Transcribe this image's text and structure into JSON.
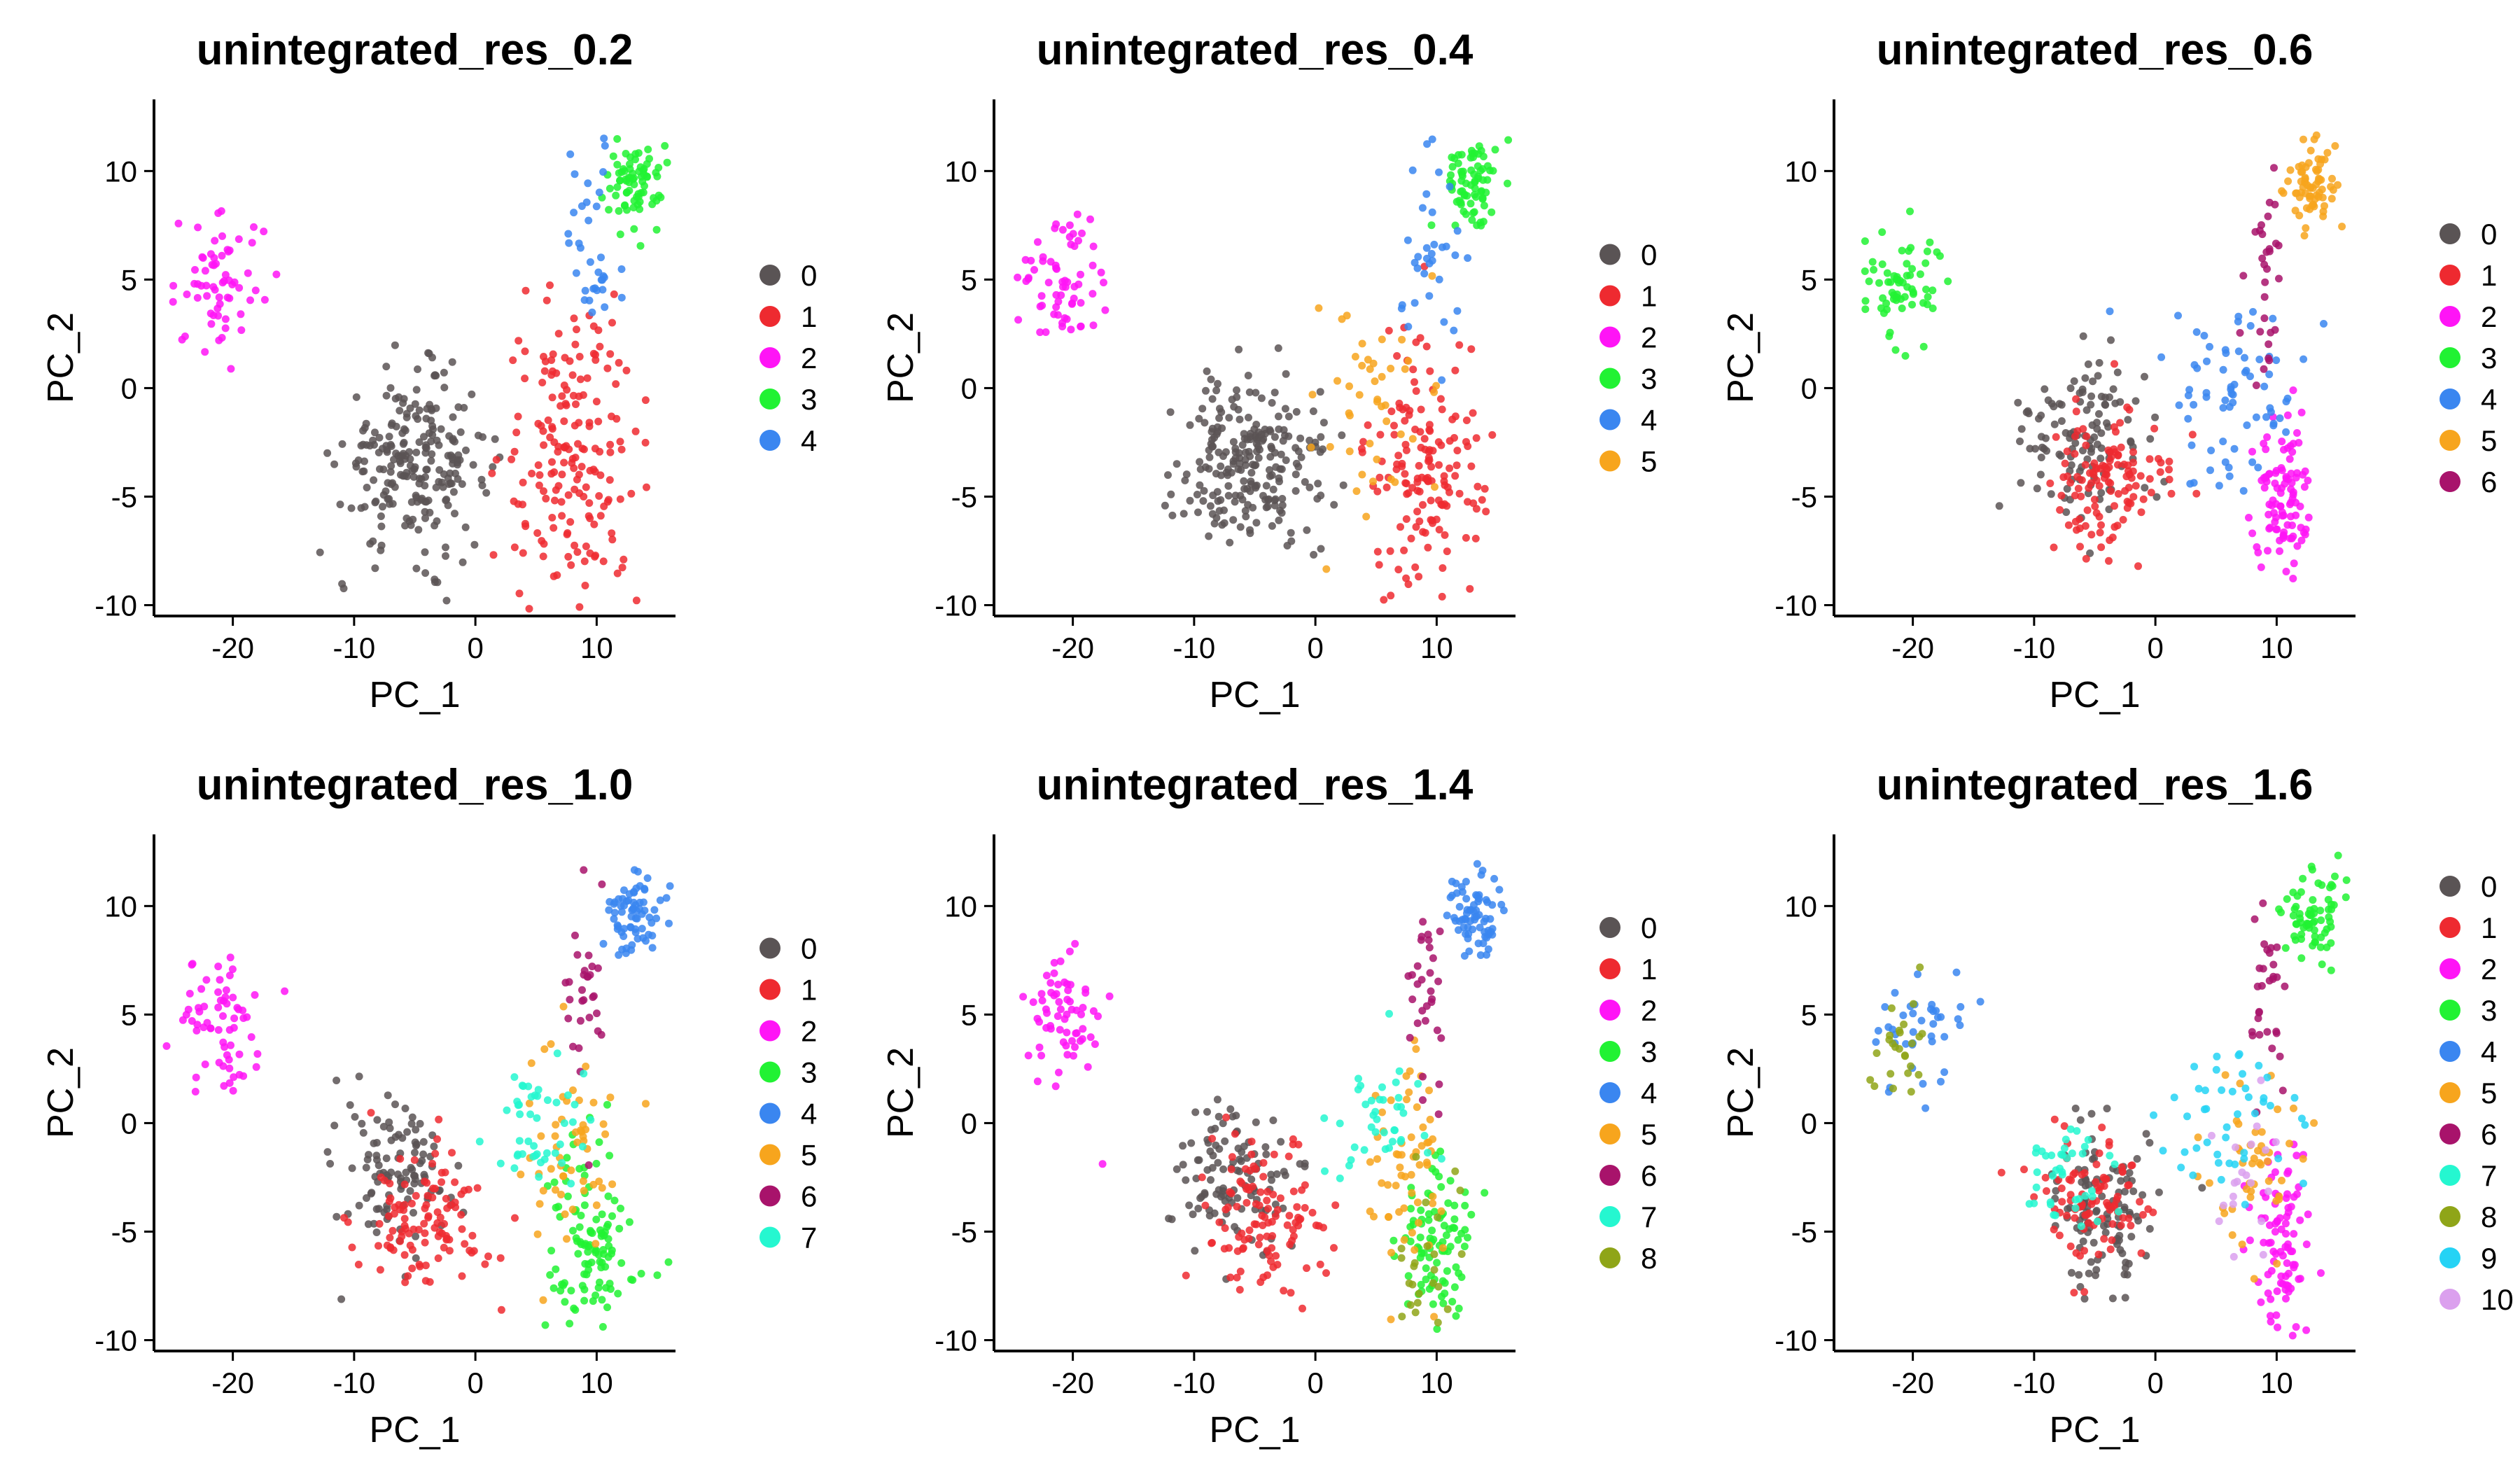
{
  "palette": {
    "0": "#5a5455",
    "1": "#ee2a30",
    "2": "#ff14f6",
    "3": "#21f233",
    "4": "#3a86f0",
    "5": "#f7a51d",
    "6": "#a8136b",
    "7": "#25f7d0",
    "8": "#8fa518",
    "9": "#25d3f5",
    "10": "#dba0ee"
  },
  "chart_data": [
    {
      "type": "scatter",
      "title": "unintegrated_res_0.2",
      "xlabel": "PC_1",
      "ylabel": "PC_2",
      "xlim": [
        -26.5,
        16.5
      ],
      "ylim": [
        -10.5,
        13.3
      ],
      "xticks": [
        -20,
        -10,
        0,
        10
      ],
      "yticks": [
        -10,
        -5,
        0,
        5,
        10
      ],
      "grid": false,
      "legend": "right",
      "legend_labels": [
        "0",
        "1",
        "2",
        "3",
        "4"
      ],
      "clusters": [
        {
          "label": "0",
          "points": 230,
          "center": [
            -5,
            -3.5
          ],
          "spread": [
            3,
            2
          ]
        },
        {
          "label": "1",
          "points": 180,
          "center": [
            8,
            -3
          ],
          "spread": [
            2.8,
            3.5
          ]
        },
        {
          "label": "2",
          "points": 65,
          "center": [
            -21,
            4.8
          ],
          "spread": [
            1.8,
            1.5
          ]
        },
        {
          "label": "3",
          "points": 75,
          "center": [
            13,
            9.5
          ],
          "spread": [
            1.2,
            1
          ]
        },
        {
          "label": "4",
          "points": 35,
          "center": [
            9.5,
            6.5
          ],
          "spread": [
            1.2,
            2.5
          ]
        }
      ]
    },
    {
      "type": "scatter",
      "title": "unintegrated_res_0.4",
      "xlabel": "PC_1",
      "ylabel": "PC_2",
      "xlim": [
        -26.5,
        16.5
      ],
      "ylim": [
        -10.5,
        13.3
      ],
      "xticks": [
        -20,
        -10,
        0,
        10
      ],
      "yticks": [
        -10,
        -5,
        0,
        5,
        10
      ],
      "grid": false,
      "legend": "right",
      "legend_labels": [
        "0",
        "1",
        "2",
        "3",
        "4",
        "5"
      ],
      "clusters": [
        {
          "label": "0",
          "points": 230,
          "center": [
            -5,
            -3.5
          ],
          "spread": [
            3,
            2
          ]
        },
        {
          "label": "1",
          "points": 150,
          "center": [
            9,
            -4
          ],
          "spread": [
            2.3,
            3
          ]
        },
        {
          "label": "2",
          "points": 65,
          "center": [
            -21,
            4.8
          ],
          "spread": [
            1.8,
            1.5
          ]
        },
        {
          "label": "3",
          "points": 75,
          "center": [
            13,
            9.5
          ],
          "spread": [
            1.2,
            1
          ]
        },
        {
          "label": "4",
          "points": 35,
          "center": [
            9.5,
            6.5
          ],
          "spread": [
            1.2,
            2.5
          ]
        },
        {
          "label": "5",
          "points": 45,
          "center": [
            5,
            -1
          ],
          "spread": [
            2.5,
            2.5
          ]
        }
      ]
    },
    {
      "type": "scatter",
      "title": "unintegrated_res_0.6",
      "xlabel": "PC_1",
      "ylabel": "PC_2",
      "xlim": [
        -26.5,
        16.5
      ],
      "ylim": [
        -10.5,
        13.3
      ],
      "xticks": [
        -20,
        -10,
        0,
        10
      ],
      "yticks": [
        -10,
        -5,
        0,
        5,
        10
      ],
      "grid": false,
      "legend": "right",
      "legend_labels": [
        "0",
        "1",
        "2",
        "3",
        "4",
        "5",
        "6"
      ],
      "clusters": [
        {
          "label": "0",
          "points": 120,
          "center": [
            -6.5,
            -2.5
          ],
          "spread": [
            2.5,
            1.8
          ]
        },
        {
          "label": "1",
          "points": 120,
          "center": [
            -4,
            -4.3
          ],
          "spread": [
            2.5,
            1.8
          ]
        },
        {
          "label": "2",
          "points": 100,
          "center": [
            10.5,
            -5.5
          ],
          "spread": [
            1.2,
            2.2
          ]
        },
        {
          "label": "3",
          "points": 65,
          "center": [
            -21,
            4.8
          ],
          "spread": [
            1.8,
            1.5
          ]
        },
        {
          "label": "4",
          "points": 70,
          "center": [
            6,
            0
          ],
          "spread": [
            3,
            2
          ]
        },
        {
          "label": "5",
          "points": 70,
          "center": [
            13,
            9.5
          ],
          "spread": [
            1.2,
            1
          ]
        },
        {
          "label": "6",
          "points": 30,
          "center": [
            9,
            6
          ],
          "spread": [
            0.8,
            2.5
          ]
        }
      ]
    },
    {
      "type": "scatter",
      "title": "unintegrated_res_1.0",
      "xlabel": "PC_1",
      "ylabel": "PC_2",
      "xlim": [
        -26.5,
        16.5
      ],
      "ylim": [
        -10.5,
        13.3
      ],
      "xticks": [
        -20,
        -10,
        0,
        10
      ],
      "yticks": [
        -10,
        -5,
        0,
        5,
        10
      ],
      "grid": false,
      "legend": "right",
      "legend_labels": [
        "0",
        "1",
        "2",
        "3",
        "4",
        "5",
        "6",
        "7"
      ],
      "clusters": [
        {
          "label": "0",
          "points": 110,
          "center": [
            -6.5,
            -2.5
          ],
          "spread": [
            2.5,
            1.8
          ]
        },
        {
          "label": "1",
          "points": 110,
          "center": [
            -4,
            -4.3
          ],
          "spread": [
            2.5,
            1.8
          ]
        },
        {
          "label": "2",
          "points": 65,
          "center": [
            -21,
            4.8
          ],
          "spread": [
            1.8,
            1.5
          ]
        },
        {
          "label": "3",
          "points": 110,
          "center": [
            9.5,
            -5.5
          ],
          "spread": [
            1.8,
            2.2
          ]
        },
        {
          "label": "4",
          "points": 70,
          "center": [
            13,
            9.5
          ],
          "spread": [
            1.2,
            1
          ]
        },
        {
          "label": "5",
          "points": 55,
          "center": [
            8,
            -1.5
          ],
          "spread": [
            2,
            2.5
          ]
        },
        {
          "label": "6",
          "points": 30,
          "center": [
            9,
            6
          ],
          "spread": [
            0.8,
            2.5
          ]
        },
        {
          "label": "7",
          "points": 45,
          "center": [
            5,
            0
          ],
          "spread": [
            2.2,
            1.5
          ]
        }
      ]
    },
    {
      "type": "scatter",
      "title": "unintegrated_res_1.4",
      "xlabel": "PC_1",
      "ylabel": "PC_2",
      "xlim": [
        -26.5,
        16.5
      ],
      "ylim": [
        -10.5,
        13.3
      ],
      "xticks": [
        -20,
        -10,
        0,
        10
      ],
      "yticks": [
        -10,
        -5,
        0,
        5,
        10
      ],
      "grid": false,
      "legend": "right",
      "legend_labels": [
        "0",
        "1",
        "2",
        "3",
        "4",
        "5",
        "6",
        "7",
        "8"
      ],
      "clusters": [
        {
          "label": "0",
          "points": 110,
          "center": [
            -6.5,
            -2.5
          ],
          "spread": [
            2.5,
            1.8
          ]
        },
        {
          "label": "1",
          "points": 110,
          "center": [
            -4,
            -4.3
          ],
          "spread": [
            2.5,
            1.8
          ]
        },
        {
          "label": "2",
          "points": 65,
          "center": [
            -21,
            4.8
          ],
          "spread": [
            1.8,
            1.5
          ]
        },
        {
          "label": "3",
          "points": 90,
          "center": [
            10,
            -5.5
          ],
          "spread": [
            1.5,
            2.2
          ]
        },
        {
          "label": "4",
          "points": 70,
          "center": [
            13,
            9.5
          ],
          "spread": [
            1.2,
            1
          ]
        },
        {
          "label": "5",
          "points": 60,
          "center": [
            7.5,
            -2
          ],
          "spread": [
            2.2,
            2.5
          ]
        },
        {
          "label": "6",
          "points": 30,
          "center": [
            9,
            6
          ],
          "spread": [
            0.8,
            2.5
          ]
        },
        {
          "label": "7",
          "points": 40,
          "center": [
            5,
            0
          ],
          "spread": [
            2.2,
            1.5
          ]
        },
        {
          "label": "8",
          "points": 25,
          "center": [
            9,
            -6
          ],
          "spread": [
            1.5,
            2
          ]
        }
      ]
    },
    {
      "type": "scatter",
      "title": "unintegrated_res_1.6",
      "xlabel": "PC_1",
      "ylabel": "PC_2",
      "xlim": [
        -26.5,
        16.5
      ],
      "ylim": [
        -10.5,
        13.3
      ],
      "xticks": [
        -20,
        -10,
        0,
        10
      ],
      "yticks": [
        -10,
        -5,
        0,
        5,
        10
      ],
      "grid": false,
      "legend": "right",
      "legend_labels": [
        "0",
        "1",
        "2",
        "3",
        "4",
        "5",
        "6",
        "7",
        "8",
        "9",
        "10"
      ],
      "clusters": [
        {
          "label": "0",
          "points": 110,
          "center": [
            -4.5,
            -4
          ],
          "spread": [
            2.2,
            1.8
          ]
        },
        {
          "label": "1",
          "points": 90,
          "center": [
            -5.5,
            -3.3
          ],
          "spread": [
            2.2,
            1.6
          ]
        },
        {
          "label": "2",
          "points": 90,
          "center": [
            10.5,
            -5.5
          ],
          "spread": [
            1.3,
            2.2
          ]
        },
        {
          "label": "3",
          "points": 70,
          "center": [
            13,
            9.5
          ],
          "spread": [
            1.2,
            1
          ]
        },
        {
          "label": "4",
          "points": 40,
          "center": [
            -19.5,
            4.2
          ],
          "spread": [
            2.2,
            1.3
          ]
        },
        {
          "label": "5",
          "points": 45,
          "center": [
            8,
            -2
          ],
          "spread": [
            2.2,
            2.2
          ]
        },
        {
          "label": "6",
          "points": 30,
          "center": [
            9,
            6
          ],
          "spread": [
            0.8,
            2.5
          ]
        },
        {
          "label": "7",
          "points": 40,
          "center": [
            -7,
            -2
          ],
          "spread": [
            2,
            1.5
          ]
        },
        {
          "label": "8",
          "points": 25,
          "center": [
            -21,
            3.5
          ],
          "spread": [
            1.2,
            1.2
          ]
        },
        {
          "label": "9",
          "points": 45,
          "center": [
            6,
            0
          ],
          "spread": [
            2.8,
            1.5
          ]
        },
        {
          "label": "10",
          "points": 20,
          "center": [
            8,
            -3
          ],
          "spread": [
            2,
            2
          ]
        }
      ]
    }
  ]
}
